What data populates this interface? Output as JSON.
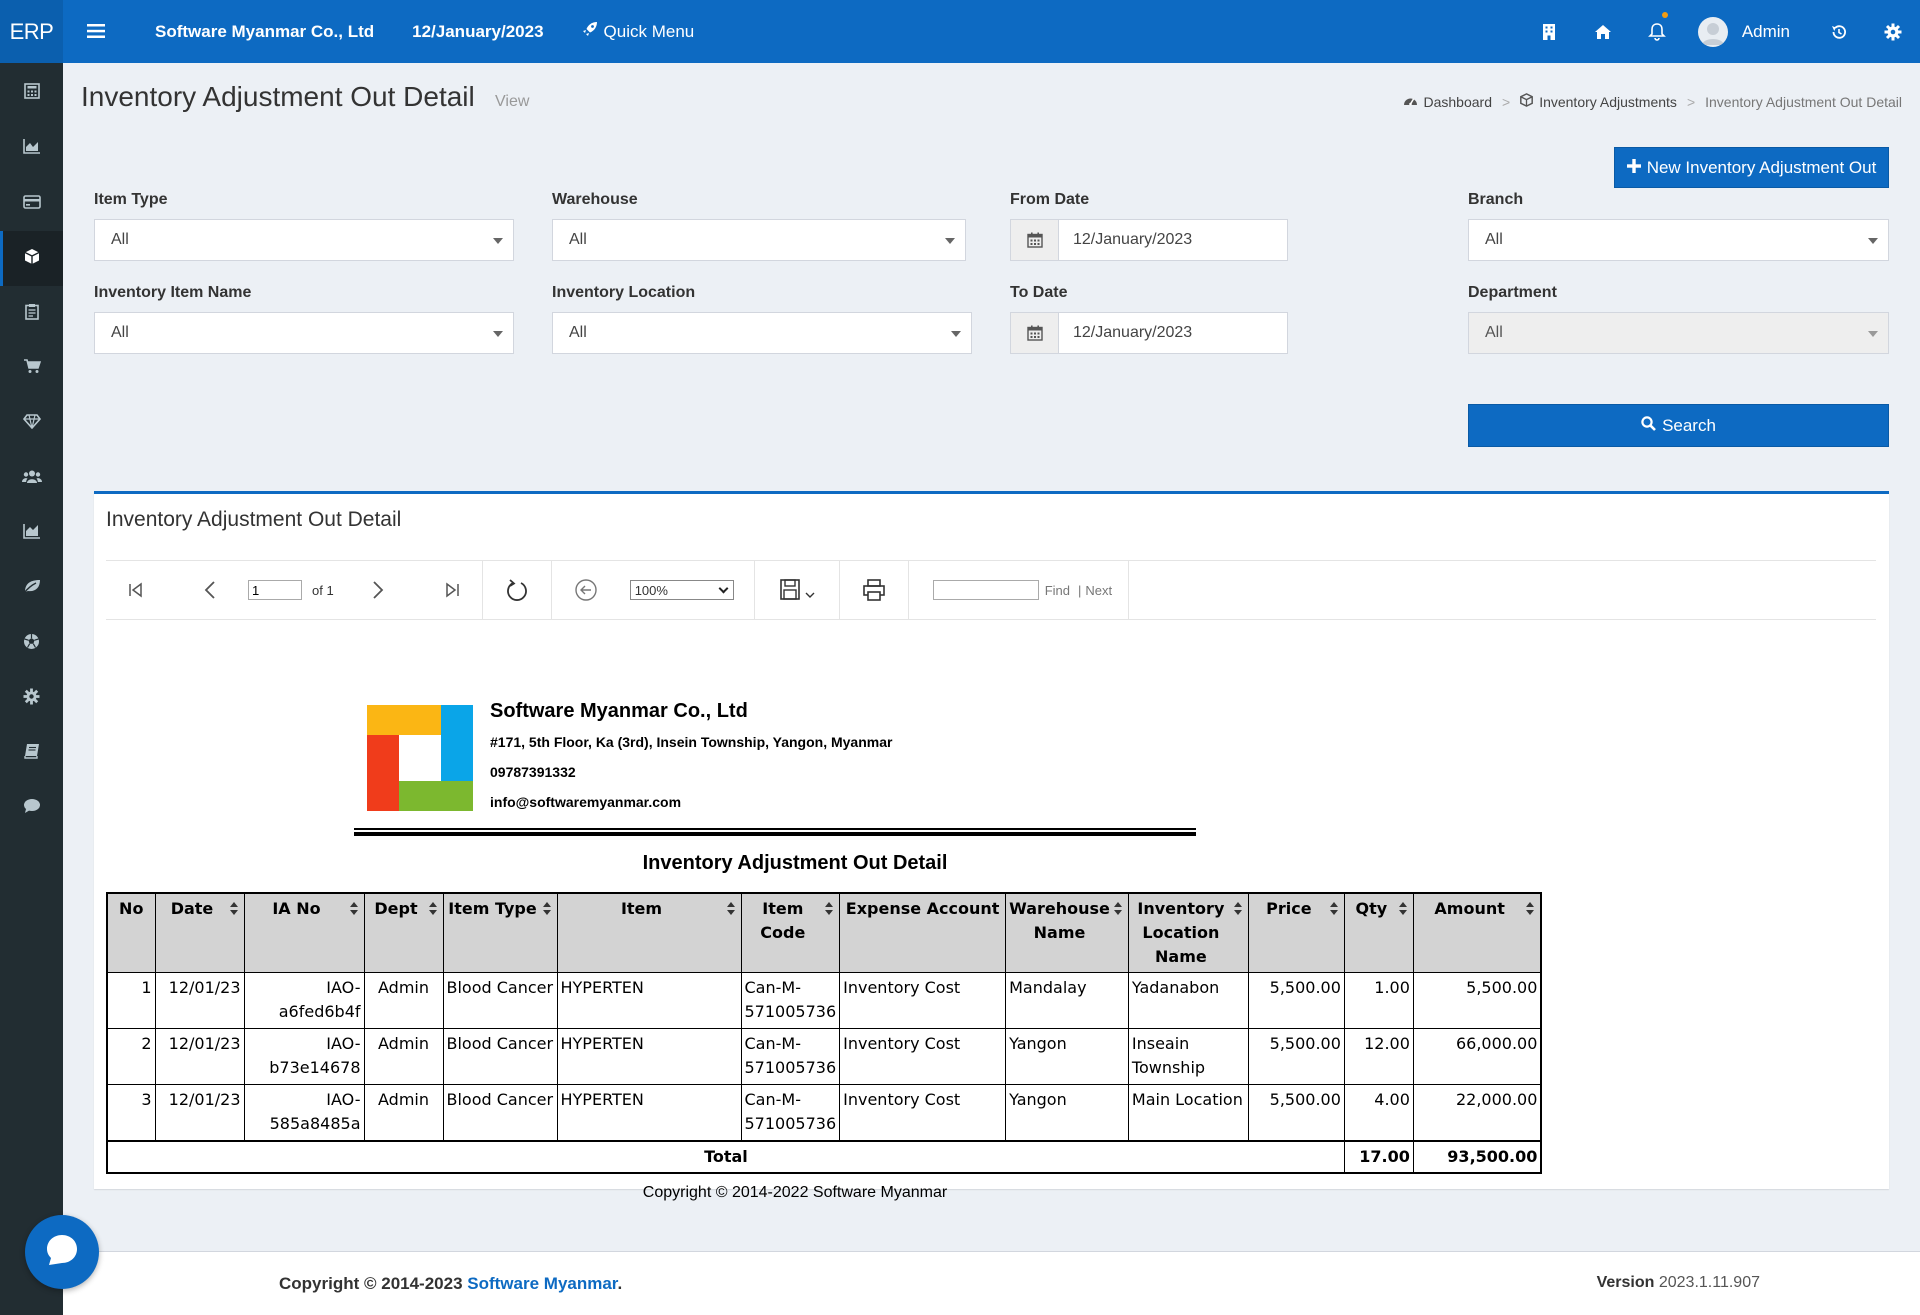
{
  "header": {
    "brand": "ERP",
    "company": "Software Myanmar Co., Ltd",
    "date": "12/January/2023",
    "quick_menu": "Quick Menu",
    "user": "Admin"
  },
  "page": {
    "title": "Inventory Adjustment Out Detail",
    "subtitle": "View",
    "breadcrumb": [
      "Dashboard",
      "Inventory Adjustments",
      "Inventory Adjustment Out Detail"
    ],
    "new_button": "New Inventory Adjustment Out",
    "search_button": "Search"
  },
  "filters": {
    "item_type": {
      "label": "Item Type",
      "value": "All"
    },
    "warehouse": {
      "label": "Warehouse",
      "value": "All"
    },
    "from_date": {
      "label": "From Date",
      "value": "12/January/2023"
    },
    "branch": {
      "label": "Branch",
      "value": "All"
    },
    "inventory_item_name": {
      "label": "Inventory Item Name",
      "value": "All"
    },
    "inventory_location": {
      "label": "Inventory Location",
      "value": "All"
    },
    "to_date": {
      "label": "To Date",
      "value": "12/January/2023"
    },
    "department": {
      "label": "Department",
      "value": "All"
    }
  },
  "report_box": {
    "title": "Inventory Adjustment Out Detail",
    "toolbar": {
      "page_value": "1",
      "of_pages": "of 1",
      "zoom": "100%",
      "find": "Find",
      "next": "Next"
    }
  },
  "report": {
    "company": "Software Myanmar Co., Ltd",
    "address": "#171, 5th Floor, Ka (3rd), Insein Township, Yangon, Myanmar",
    "phone": "09787391332",
    "email": "info@softwaremyanmar.com",
    "title": "Inventory Adjustment Out Detail",
    "columns": [
      "No",
      "Date",
      "IA No",
      "Dept",
      "Item Type",
      "Item",
      "Item Code",
      "Expense Account",
      "Warehouse Name",
      "Inventory Location Name",
      "Price",
      "Qty",
      "Amount"
    ],
    "rows": [
      {
        "no": "1",
        "date": "12/01/23",
        "ia_no": "IAO-a6fed6b4f",
        "dept": "Admin",
        "item_type": "Blood Cancer",
        "item": "HYPERTEN",
        "item_code": "Can-M-571005736",
        "expense": "Inventory Cost",
        "warehouse": "Mandalay",
        "location": "Yadanabon",
        "price": "5,500.00",
        "qty": "1.00",
        "amount": "5,500.00"
      },
      {
        "no": "2",
        "date": "12/01/23",
        "ia_no": "IAO-b73e14678",
        "dept": "Admin",
        "item_type": "Blood Cancer",
        "item": "HYPERTEN",
        "item_code": "Can-M-571005736",
        "expense": "Inventory Cost",
        "warehouse": "Yangon",
        "location": "Inseain Township",
        "price": "5,500.00",
        "qty": "12.00",
        "amount": "66,000.00"
      },
      {
        "no": "3",
        "date": "12/01/23",
        "ia_no": "IAO-585a8485a",
        "dept": "Admin",
        "item_type": "Blood Cancer",
        "item": "HYPERTEN",
        "item_code": "Can-M-571005736",
        "expense": "Inventory Cost",
        "warehouse": "Yangon",
        "location": "Main Location",
        "price": "5,500.00",
        "qty": "4.00",
        "amount": "22,000.00"
      }
    ],
    "total_label": "Total",
    "total_qty": "17.00",
    "total_amount": "93,500.00",
    "copyright": "Copyright © 2014-2022 Software Myanmar"
  },
  "footer": {
    "copyright_prefix": "Copyright © 2014-2023 ",
    "copyright_link": "Software Myanmar",
    "copyright_suffix": ".",
    "version_label": "Version",
    "version": "2023.1.11.907"
  },
  "colors": {
    "primary": "#0d6ac2",
    "sidebar": "#222d32"
  },
  "sidebar_icons": [
    "calculator-icon",
    "area-chart-icon",
    "credit-card-icon",
    "cube-icon",
    "clipboard-icon",
    "cart-icon",
    "diamond-icon",
    "users-icon",
    "bar-chart-icon",
    "leaf-icon",
    "soccer-ball-icon",
    "gear-icon",
    "book-icon",
    "comment-icon"
  ]
}
